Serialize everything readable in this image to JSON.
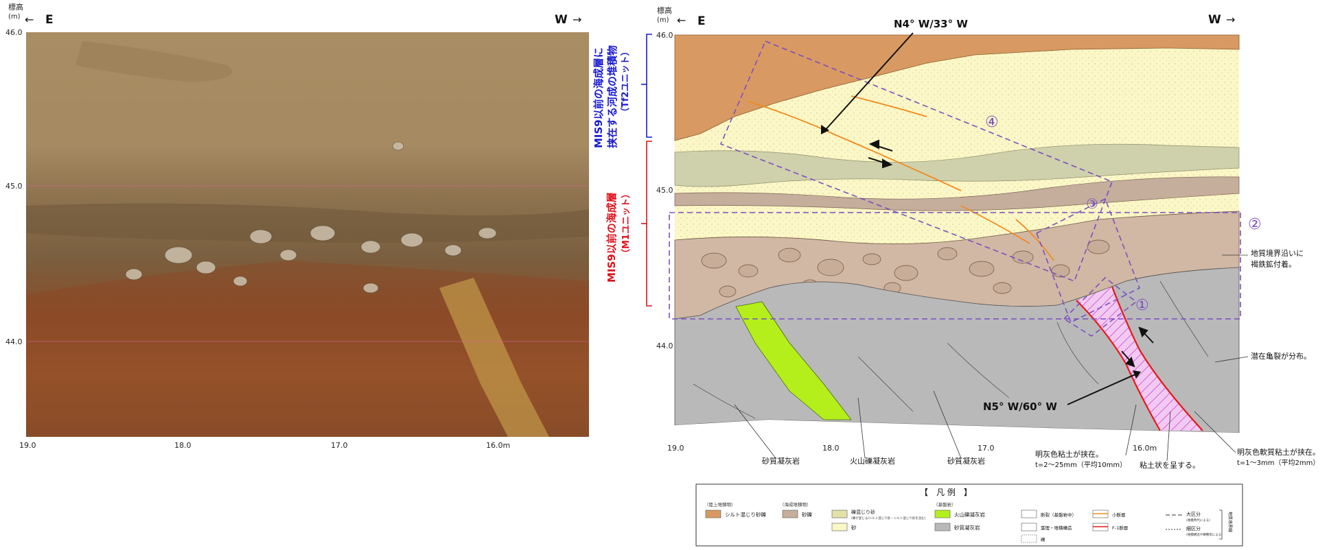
{
  "left_panel": {
    "elevation_header": "標高",
    "elevation_unit": "(m)",
    "east_label": "E",
    "west_label": "W",
    "y_ticks": [
      "46.0",
      "45.0",
      "44.0"
    ],
    "x_ticks": [
      "19.0",
      "18.0",
      "17.0",
      "16.0m"
    ]
  },
  "unit_brackets": {
    "upper_line1": "MIS9以前の海成層に",
    "upper_line2": "挟在する河成の堆積物",
    "upper_line3": "（Tf2ユニット）",
    "upper_color": "#1a1ad0",
    "lower_line1": "MIS9以前の海成層",
    "lower_line2": "（M1ユニット）",
    "lower_color": "#e0101a"
  },
  "right_panel": {
    "elevation_header": "標高",
    "elevation_unit": "(m)",
    "east_label": "E",
    "west_label": "W",
    "y_ticks": [
      "46.0",
      "45.0",
      "44.0"
    ],
    "x_ticks": [
      "19.0",
      "18.0",
      "17.0",
      "16.0m"
    ],
    "strike_dip_upper": "N4° W/33° W",
    "strike_dip_lower": "N5° W/60° W",
    "zone_labels": [
      "①",
      "②",
      "③",
      "④"
    ],
    "annotation_boundary_1": "地質境界沿いに",
    "annotation_boundary_2": "褐鉄鉱付着。",
    "annotation_cracks": "潜在亀裂が分布。",
    "annotation_clay_left_1": "明灰色粘土が挟在。",
    "annotation_clay_left_2": "t=2～25mm（平均10mm）",
    "annotation_clay_left_3": "粘土状を呈する。",
    "annotation_clay_right_1": "明灰色軟質粘土が挟在。",
    "annotation_clay_right_2": "t=1～3mm（平均2mm）",
    "rock_labels": [
      "砂質凝灰岩",
      "火山礫凝灰岩",
      "砂質凝灰岩"
    ],
    "zone_color": "#7a4fc0",
    "fault_color": "#e81818",
    "minor_fault_color": "#f08a1c"
  },
  "legend": {
    "title": "【　凡 例　】",
    "groups": [
      "（陸上堆積物）",
      "（海成堆積物）",
      "（基盤岩）"
    ],
    "items": {
      "silty_gravel": "シルト混じり砂礫",
      "gravel": "砂礫",
      "gravelly_sand": "礫混じり砂",
      "gravelly_sand_note": "(礫が混じる/シルト混じり砂・シルト混じり砂を含む)",
      "sand": "砂",
      "lapilli_tuff": "火山礫凝灰岩",
      "sandy_tuff": "砂質凝灰岩",
      "fault_basement": "断裂（基盤岩中）",
      "bedding": "葉理・堆積構造",
      "gravel_symbol": "礫",
      "minor_fault": "小断層",
      "f1_fault": "F-1断層",
      "large_division": "大区分",
      "large_division_note": "(堆積時代による)",
      "small_division": "細区分",
      "small_division_note": "(堆積構造や礫種等による)",
      "boundary_group": "地質境界線"
    }
  }
}
